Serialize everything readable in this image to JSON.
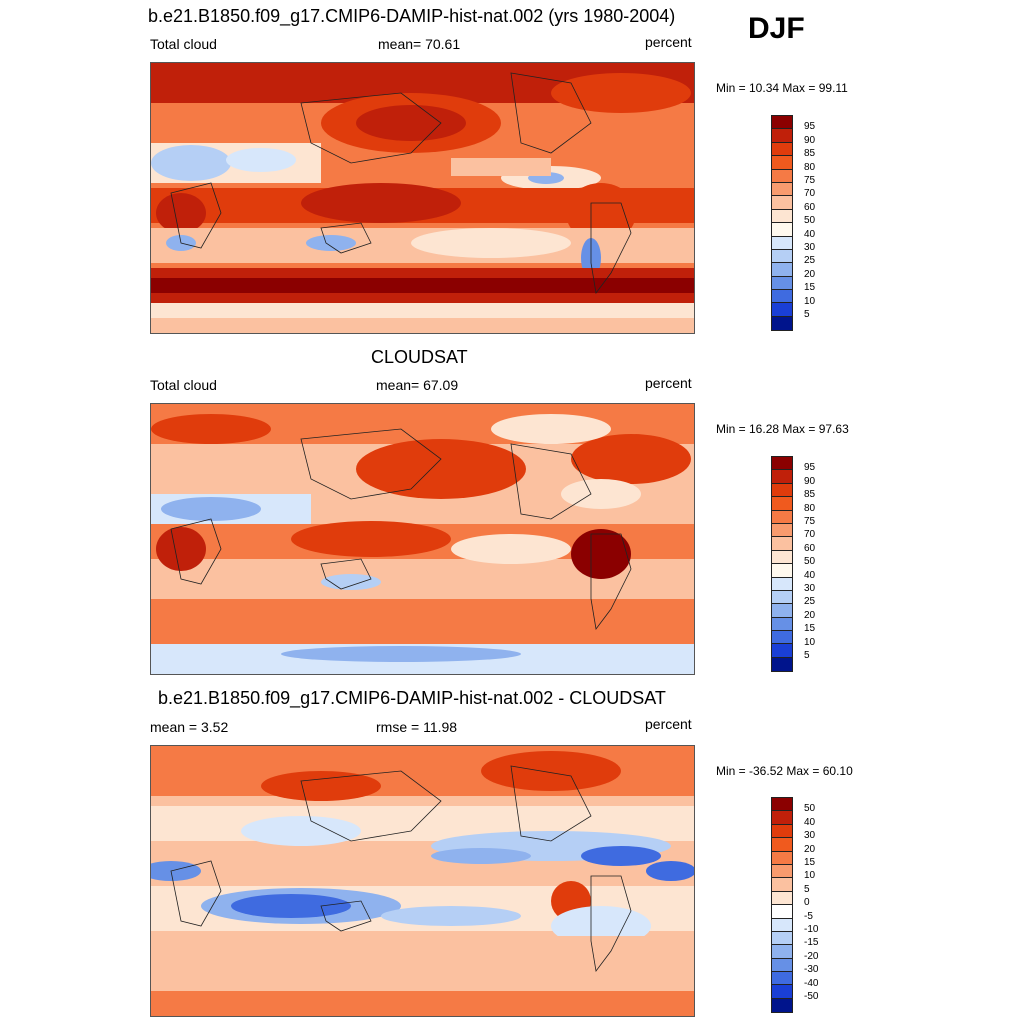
{
  "season": "DJF",
  "panels": [
    {
      "title": "b.e21.B1850.f09_g17.CMIP6-DAMIP-hist-nat.002 (yrs 1980-2004)",
      "left_label": "Total cloud",
      "center_label": "mean=  70.61",
      "right_label": "percent",
      "minmax": "Min =  10.34 Max =  99.11",
      "levels": [
        "95",
        "90",
        "85",
        "80",
        "75",
        "70",
        "60",
        "50",
        "40",
        "30",
        "25",
        "20",
        "15",
        "10",
        "5"
      ],
      "colors": [
        "#8b0000",
        "#c0200a",
        "#e03c0c",
        "#f05a1e",
        "#f57a45",
        "#f89b6e",
        "#fbc1a0",
        "#fde5d2",
        "#fff9ee",
        "#d7e7fb",
        "#b5cff5",
        "#8fb2ee",
        "#6690e6",
        "#3f6be0",
        "#1a3fd6",
        "#00148c"
      ]
    },
    {
      "title": "CLOUDSAT",
      "left_label": "Total cloud",
      "center_label": "mean=  67.09",
      "right_label": "percent",
      "minmax": "Min =  16.28 Max =  97.63",
      "levels": [
        "95",
        "90",
        "85",
        "80",
        "75",
        "70",
        "60",
        "50",
        "40",
        "30",
        "25",
        "20",
        "15",
        "10",
        "5"
      ],
      "colors": [
        "#8b0000",
        "#c0200a",
        "#e03c0c",
        "#f05a1e",
        "#f57a45",
        "#f89b6e",
        "#fbc1a0",
        "#fde5d2",
        "#fff9ee",
        "#d7e7fb",
        "#b5cff5",
        "#8fb2ee",
        "#6690e6",
        "#3f6be0",
        "#1a3fd6",
        "#00148c"
      ]
    },
    {
      "title": "b.e21.B1850.f09_g17.CMIP6-DAMIP-hist-nat.002 - CLOUDSAT",
      "left_label": "mean =   3.52",
      "center_label": "rmse =  11.98",
      "right_label": "percent",
      "minmax": "Min = -36.52 Max =  60.10",
      "levels": [
        "50",
        "40",
        "30",
        "20",
        "15",
        "10",
        "5",
        "0",
        "-5",
        "-10",
        "-15",
        "-20",
        "-30",
        "-40",
        "-50"
      ],
      "colors": [
        "#8b0000",
        "#c0200a",
        "#e03c0c",
        "#f05a1e",
        "#f57a45",
        "#f89b6e",
        "#fbc1a0",
        "#fde5d2",
        "#ffffff",
        "#d7e7fb",
        "#b5cff5",
        "#8fb2ee",
        "#6690e6",
        "#3f6be0",
        "#1a3fd6",
        "#00148c"
      ]
    }
  ]
}
